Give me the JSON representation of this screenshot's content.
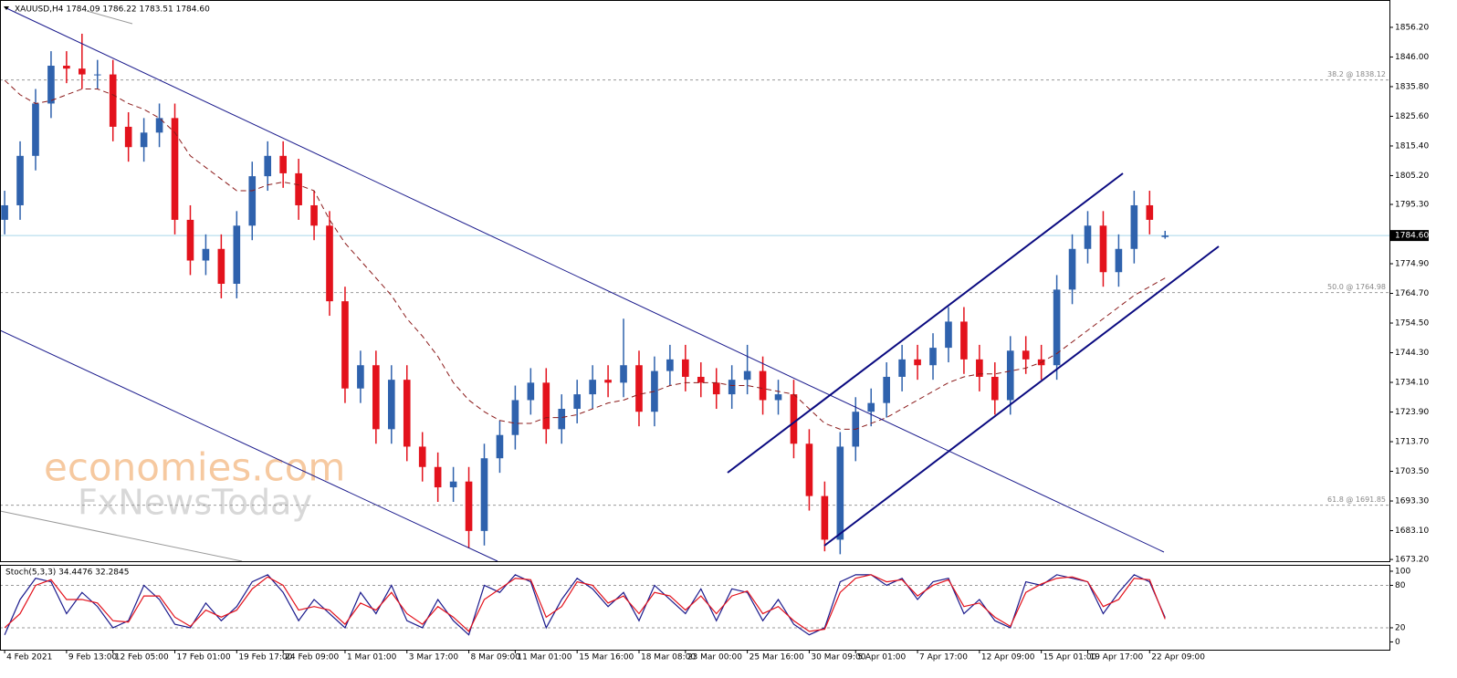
{
  "chart_data": [
    {
      "type": "candlestick",
      "title": "XAUUSD,H4  1784.09 1786.22 1783.51 1784.60",
      "x": [
        0,
        1,
        2,
        3,
        4,
        5,
        6,
        7,
        8,
        9,
        10,
        11,
        12,
        13,
        14,
        15,
        16,
        17,
        18,
        19,
        20,
        21,
        22,
        23,
        24,
        25,
        26,
        27,
        28,
        29,
        30,
        31,
        32,
        33,
        34,
        35,
        36,
        37,
        38,
        39,
        40,
        41,
        42,
        43,
        44,
        45,
        46,
        47,
        48,
        49,
        50,
        51,
        52,
        53,
        54,
        55,
        56,
        57,
        58,
        59,
        60,
        61,
        62,
        63,
        64,
        65,
        66,
        67,
        68,
        69,
        70,
        71,
        72,
        73,
        74,
        75
      ],
      "open": [
        1790,
        1795,
        1812,
        1830,
        1843,
        1842,
        1840,
        1840,
        1822,
        1815,
        1820,
        1825,
        1790,
        1776,
        1780,
        1768,
        1788,
        1805,
        1812,
        1806,
        1795,
        1788,
        1762,
        1732,
        1740,
        1718,
        1735,
        1712,
        1705,
        1698,
        1700,
        1683,
        1708,
        1716,
        1728,
        1734,
        1718,
        1725,
        1730,
        1735,
        1734,
        1740,
        1724,
        1738,
        1742,
        1736,
        1734,
        1730,
        1735,
        1738,
        1728,
        1730,
        1713,
        1695,
        1680,
        1712,
        1724,
        1727,
        1736,
        1742,
        1740,
        1746,
        1755,
        1742,
        1736,
        1728,
        1745,
        1742,
        1740,
        1766,
        1780,
        1788,
        1772,
        1780,
        1795,
        1784.09
      ],
      "high": [
        1800,
        1817,
        1835,
        1848,
        1848,
        1854,
        1845,
        1845,
        1827,
        1825,
        1830,
        1830,
        1795,
        1785,
        1785,
        1793,
        1810,
        1817,
        1817,
        1811,
        1800,
        1793,
        1767,
        1745,
        1745,
        1740,
        1740,
        1717,
        1710,
        1705,
        1705,
        1713,
        1721,
        1733,
        1739,
        1739,
        1730,
        1735,
        1740,
        1740,
        1756,
        1745,
        1743,
        1747,
        1747,
        1741,
        1739,
        1740,
        1747,
        1743,
        1735,
        1735,
        1718,
        1700,
        1717,
        1729,
        1732,
        1741,
        1747,
        1747,
        1751,
        1760,
        1760,
        1747,
        1741,
        1750,
        1750,
        1747,
        1771,
        1785,
        1793,
        1793,
        1785,
        1800,
        1800,
        1786.22
      ],
      "low": [
        1785,
        1790,
        1807,
        1825,
        1837,
        1835,
        1835,
        1817,
        1810,
        1810,
        1815,
        1785,
        1771,
        1771,
        1763,
        1763,
        1783,
        1800,
        1801,
        1790,
        1783,
        1757,
        1727,
        1727,
        1713,
        1713,
        1707,
        1700,
        1693,
        1693,
        1677,
        1678,
        1703,
        1711,
        1723,
        1713,
        1713,
        1720,
        1725,
        1729,
        1729,
        1719,
        1719,
        1733,
        1731,
        1729,
        1725,
        1725,
        1730,
        1723,
        1723,
        1708,
        1690,
        1676,
        1675,
        1707,
        1719,
        1722,
        1731,
        1735,
        1735,
        1741,
        1737,
        1731,
        1723,
        1723,
        1737,
        1735,
        1735,
        1761,
        1775,
        1767,
        1767,
        1775,
        1785,
        1783.51
      ],
      "close": [
        1795,
        1812,
        1830,
        1843,
        1842,
        1840,
        1840,
        1822,
        1815,
        1820,
        1825,
        1790,
        1776,
        1780,
        1768,
        1788,
        1805,
        1812,
        1806,
        1795,
        1788,
        1762,
        1732,
        1740,
        1718,
        1735,
        1712,
        1705,
        1698,
        1700,
        1683,
        1708,
        1716,
        1728,
        1734,
        1718,
        1725,
        1730,
        1735,
        1734,
        1740,
        1724,
        1738,
        1742,
        1736,
        1734,
        1730,
        1735,
        1738,
        1728,
        1730,
        1713,
        1695,
        1680,
        1712,
        1724,
        1727,
        1736,
        1742,
        1740,
        1746,
        1755,
        1742,
        1736,
        1728,
        1745,
        1742,
        1740,
        1766,
        1780,
        1788,
        1772,
        1780,
        1795,
        1790,
        1784.6
      ],
      "up_color": "#2f62ad",
      "down_color": "#e3121c",
      "ma": {
        "color": "#8b1a1a",
        "values": [
          1838,
          1833,
          1830,
          1831,
          1833,
          1835,
          1835,
          1833,
          1830,
          1828,
          1825,
          1820,
          1812,
          1808,
          1804,
          1800,
          1800,
          1802,
          1803,
          1802,
          1800,
          1790,
          1782,
          1776,
          1770,
          1764,
          1756,
          1750,
          1743,
          1734,
          1728,
          1724,
          1721,
          1720,
          1720,
          1722,
          1722,
          1723,
          1725,
          1727,
          1728,
          1730,
          1731,
          1733,
          1734,
          1734,
          1734,
          1733,
          1733,
          1732,
          1731,
          1730,
          1725,
          1720,
          1718,
          1718,
          1720,
          1722,
          1725,
          1728,
          1731,
          1734,
          1736,
          1737,
          1737,
          1738,
          1739,
          1741,
          1744,
          1748,
          1752,
          1756,
          1760,
          1764,
          1767,
          1770
        ]
      },
      "xlim": [
        -0.3,
        89.5
      ],
      "ylim": [
        1672.6,
        1865.6
      ],
      "yticks": [
        {
          "value": 1856.2,
          "label": "1856.20"
        },
        {
          "value": 1846,
          "label": "1846.00"
        },
        {
          "value": 1835.8,
          "label": "1835.80"
        },
        {
          "value": 1825.6,
          "label": "1825.60"
        },
        {
          "value": 1815.4,
          "label": "1815.40"
        },
        {
          "value": 1805.2,
          "label": "1805.20"
        },
        {
          "value": 1795.3,
          "label": "1795.30"
        },
        {
          "value": 1774.9,
          "label": "1774.90"
        },
        {
          "value": 1764.7,
          "label": "1764.70"
        },
        {
          "value": 1754.5,
          "label": "1754.50"
        },
        {
          "value": 1744.3,
          "label": "1744.30"
        },
        {
          "value": 1734.1,
          "label": "1734.10"
        },
        {
          "value": 1723.9,
          "label": "1723.90"
        },
        {
          "value": 1713.7,
          "label": "1713.70"
        },
        {
          "value": 1703.5,
          "label": "1703.50"
        },
        {
          "value": 1693.3,
          "label": "1693.30"
        },
        {
          "value": 1683.1,
          "label": "1683.10"
        },
        {
          "value": 1673.2,
          "label": "1673.20"
        }
      ],
      "levels": [
        {
          "value": 1838.12,
          "label": "38.2 @ 1838.12"
        },
        {
          "value": 1764.98,
          "label": "50.0 @ 1764.98"
        },
        {
          "value": 1691.85,
          "label": "61.8 @ 1691.85"
        }
      ],
      "last_price": {
        "value": 1784.6,
        "label": "1784.60"
      },
      "watermark": [
        "economies.com",
        "FxNewsToday"
      ]
    },
    {
      "type": "line",
      "title": "Stoch(5,3,3) 34.4476 32.2845",
      "series": [
        {
          "color": "#1a1a8c",
          "values": [
            10,
            60,
            90,
            85,
            40,
            70,
            50,
            20,
            30,
            80,
            60,
            25,
            20,
            55,
            30,
            50,
            85,
            95,
            70,
            30,
            60,
            40,
            20,
            70,
            40,
            80,
            30,
            20,
            60,
            30,
            10,
            80,
            70,
            95,
            85,
            20,
            60,
            90,
            75,
            50,
            70,
            30,
            80,
            60,
            40,
            75,
            30,
            75,
            70,
            30,
            60,
            25,
            10,
            20,
            85,
            95,
            95,
            80,
            90,
            60,
            85,
            90,
            40,
            60,
            30,
            20,
            85,
            80,
            95,
            90,
            85,
            40,
            70,
            95,
            85,
            34.4476
          ]
        },
        {
          "color": "#e3121c",
          "values": [
            20,
            40,
            80,
            88,
            60,
            60,
            55,
            30,
            28,
            65,
            65,
            35,
            22,
            45,
            35,
            45,
            75,
            92,
            80,
            45,
            50,
            45,
            25,
            55,
            45,
            70,
            40,
            25,
            50,
            35,
            15,
            60,
            75,
            90,
            88,
            35,
            50,
            85,
            80,
            55,
            65,
            40,
            70,
            65,
            45,
            65,
            40,
            65,
            72,
            40,
            50,
            30,
            15,
            18,
            70,
            90,
            95,
            85,
            88,
            65,
            80,
            88,
            50,
            55,
            35,
            22,
            70,
            82,
            90,
            92,
            85,
            50,
            60,
            90,
            88,
            32.2845
          ]
        }
      ],
      "ylim": [
        -11,
        109
      ],
      "yticks": [
        0,
        20,
        80,
        100
      ],
      "levels": [
        20,
        80
      ],
      "xticks": [
        {
          "value": 0,
          "label": "4 Feb 2021"
        },
        {
          "value": 4,
          "label": "9 Feb 13:00"
        },
        {
          "value": 7,
          "label": "12 Feb 05:00"
        },
        {
          "value": 11,
          "label": "17 Feb 01:00"
        },
        {
          "value": 15,
          "label": "19 Feb 17:00"
        },
        {
          "value": 18,
          "label": "24 Feb 09:00"
        },
        {
          "value": 22,
          "label": "1 Mar 01:00"
        },
        {
          "value": 26,
          "label": "3 Mar 17:00"
        },
        {
          "value": 30,
          "label": "8 Mar 09:00"
        },
        {
          "value": 33,
          "label": "11 Mar 01:00"
        },
        {
          "value": 37,
          "label": "15 Mar 16:00"
        },
        {
          "value": 41,
          "label": "18 Mar 08:00"
        },
        {
          "value": 44,
          "label": "23 Mar 00:00"
        },
        {
          "value": 48,
          "label": "25 Mar 16:00"
        },
        {
          "value": 52,
          "label": "30 Mar 09:00"
        },
        {
          "value": 55,
          "label": "5 Apr 01:00"
        },
        {
          "value": 59,
          "label": "7 Apr 17:00"
        },
        {
          "value": 63,
          "label": "12 Apr 09:00"
        },
        {
          "value": 67,
          "label": "15 Apr 01:00"
        },
        {
          "value": 70,
          "label": "19 Apr 17:00"
        },
        {
          "value": 74,
          "label": "22 Apr 09:00"
        }
      ]
    }
  ]
}
